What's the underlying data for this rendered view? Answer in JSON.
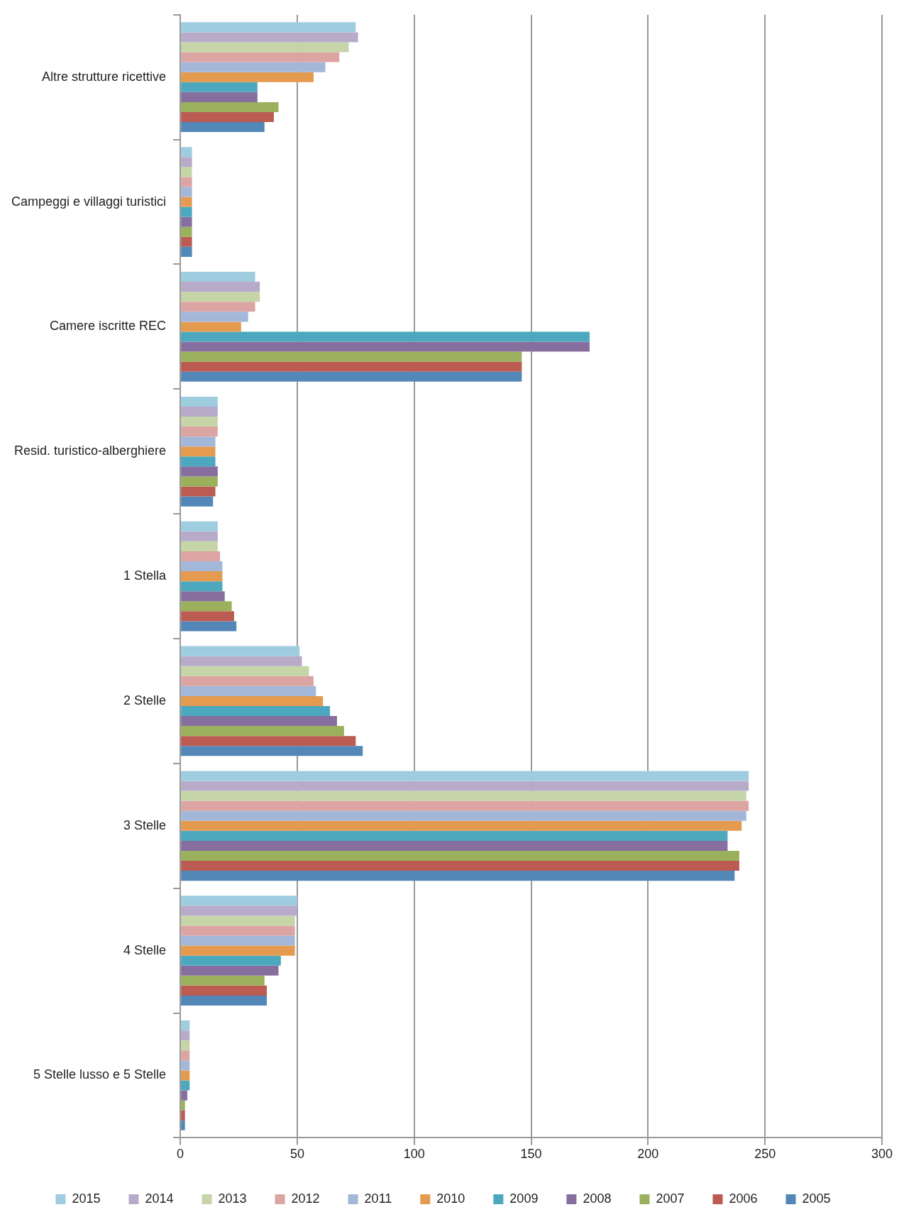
{
  "chart_data": {
    "type": "bar",
    "orientation": "horizontal",
    "categories": [
      "Altre strutture ricettive",
      "Campeggi e villaggi turistici",
      "Camere iscritte REC",
      "Resid. turistico-alberghiere",
      "1 Stella",
      "2 Stelle",
      "3 Stelle",
      "4 Stelle",
      "5 Stelle lusso e 5 Stelle"
    ],
    "series": [
      {
        "name": "2015",
        "color": "#9fcde0",
        "values": [
          75,
          5,
          32,
          16,
          16,
          51,
          243,
          50,
          4
        ]
      },
      {
        "name": "2014",
        "color": "#b7abc9",
        "values": [
          76,
          5,
          34,
          16,
          16,
          52,
          243,
          50,
          4
        ]
      },
      {
        "name": "2013",
        "color": "#c5d5a7",
        "values": [
          72,
          5,
          34,
          16,
          16,
          55,
          242,
          49,
          4
        ]
      },
      {
        "name": "2012",
        "color": "#dca4a3",
        "values": [
          68,
          5,
          32,
          16,
          17,
          57,
          243,
          49,
          4
        ]
      },
      {
        "name": "2011",
        "color": "#a3b8d9",
        "values": [
          62,
          5,
          29,
          15,
          18,
          58,
          242,
          49,
          4
        ]
      },
      {
        "name": "2010",
        "color": "#e49a4f",
        "values": [
          57,
          5,
          26,
          15,
          18,
          61,
          240,
          49,
          4
        ]
      },
      {
        "name": "2009",
        "color": "#4ba8be",
        "values": [
          33,
          5,
          175,
          15,
          18,
          64,
          234,
          43,
          4
        ]
      },
      {
        "name": "2008",
        "color": "#866f9f",
        "values": [
          33,
          5,
          175,
          16,
          19,
          67,
          234,
          42,
          3
        ]
      },
      {
        "name": "2007",
        "color": "#9ab05c",
        "values": [
          42,
          5,
          146,
          16,
          22,
          70,
          239,
          36,
          2
        ]
      },
      {
        "name": "2006",
        "color": "#bb5b52",
        "values": [
          40,
          5,
          146,
          15,
          23,
          75,
          239,
          37,
          2
        ]
      },
      {
        "name": "2005",
        "color": "#5387b8",
        "values": [
          36,
          5,
          146,
          14,
          24,
          78,
          237,
          37,
          2
        ]
      }
    ],
    "xlim": [
      0,
      300
    ],
    "xticks": [
      0,
      50,
      100,
      150,
      200,
      250,
      300
    ],
    "grid": "x",
    "legend": "bottom"
  }
}
